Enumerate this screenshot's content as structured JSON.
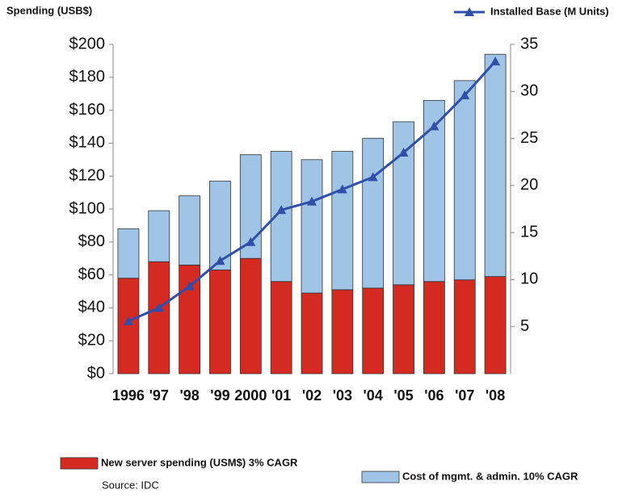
{
  "chart_data": {
    "type": "bar",
    "y_label": "Spending (USB$)",
    "y2_label": "Installed Base (M Units)",
    "source": "Source: IDC",
    "stacked": true,
    "categories": [
      "1996",
      "'97",
      "'98",
      "'99",
      "2000",
      "'01",
      "'02",
      "'03",
      "'04",
      "'05",
      "'06",
      "'07",
      "'08"
    ],
    "series": [
      {
        "name": "New server spending (USM$) 3% CAGR",
        "color": "#d42a22",
        "values": [
          58,
          68,
          66,
          63,
          70,
          56,
          49,
          51,
          52,
          54,
          56,
          57,
          59
        ]
      },
      {
        "name": "Cost of mgmt. & admin. 10% CAGR",
        "color": "#9fc4e6",
        "values": [
          30,
          31,
          42,
          54,
          63,
          79,
          81,
          84,
          91,
          99,
          110,
          121,
          135
        ]
      },
      {
        "name": "Installed Base (M Units)",
        "type": "line",
        "axis": "y2",
        "color": "#2f4fa8",
        "values": [
          5.6,
          7.0,
          9.3,
          12.0,
          14.0,
          17.4,
          18.3,
          19.6,
          20.9,
          23.5,
          26.3,
          29.6,
          33.2
        ]
      }
    ],
    "ylim": [
      0,
      200
    ],
    "yticks": [
      {
        "value": 0,
        "label": "$0"
      },
      {
        "value": 20,
        "label": "$20"
      },
      {
        "value": 40,
        "label": "$40"
      },
      {
        "value": 60,
        "label": "$60"
      },
      {
        "value": 80,
        "label": "$80"
      },
      {
        "value": 100,
        "label": "$100"
      },
      {
        "value": 120,
        "label": "$120"
      },
      {
        "value": 140,
        "label": "$140"
      },
      {
        "value": 160,
        "label": "$160"
      },
      {
        "value": 180,
        "label": "$180"
      },
      {
        "value": 200,
        "label": "$200"
      }
    ],
    "y2lim": [
      0,
      35
    ],
    "y2ticks": [
      5,
      10,
      15,
      20,
      25,
      30,
      35
    ]
  }
}
